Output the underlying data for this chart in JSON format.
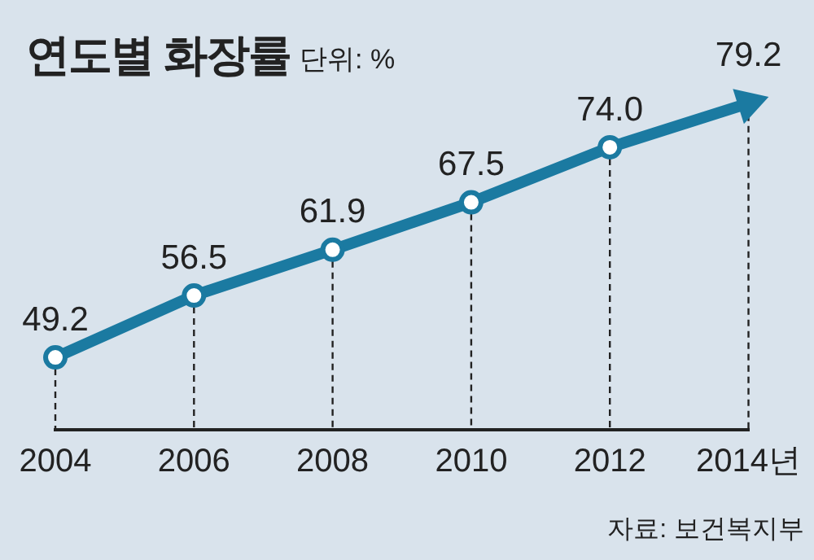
{
  "chart_data": {
    "type": "line",
    "title": "연도별 화장률",
    "subtitle": "단위: %",
    "categories": [
      "2004",
      "2006",
      "2008",
      "2010",
      "2012",
      "2014년"
    ],
    "series": [
      {
        "color": "#1b7aa1",
        "values": [
          49.2,
          56.5,
          61.9,
          67.5,
          74.0,
          79.2
        ],
        "value_labels": [
          "49.2",
          "56.5",
          "61.9",
          "67.5",
          "74.0",
          "79.2"
        ]
      }
    ],
    "marker": "circle",
    "grid": "x",
    "legend": false,
    "annotations": [
      "자료: 보건복지부"
    ]
  }
}
